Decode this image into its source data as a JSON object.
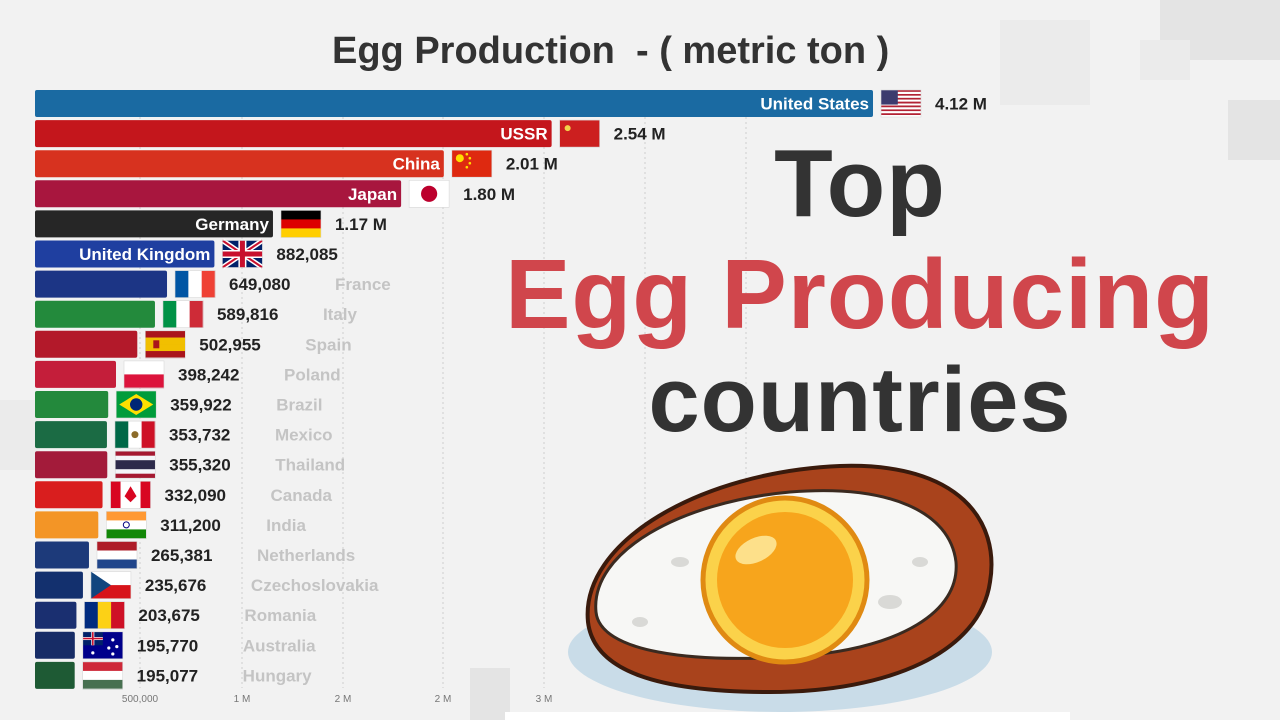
{
  "headline": {
    "line1": "Top",
    "line2": "Egg Producing",
    "line3": "countries"
  },
  "chart_data": {
    "type": "bar",
    "orientation": "horizontal",
    "title": "Egg Production  - ( metric ton )",
    "xlim": [
      0,
      4120000
    ],
    "grid": true,
    "x_ticks": [
      {
        "value": 500000,
        "label": "500,000"
      },
      {
        "value": 1000000,
        "label": "1 M"
      },
      {
        "value": 1500000,
        "label": "2 M"
      },
      {
        "value": 2000000,
        "label": "2 M"
      },
      {
        "value": 2500000,
        "label": "3 M"
      }
    ],
    "bars": [
      {
        "name": "United States",
        "value": 4120000,
        "value_label": "4.12 M",
        "color": "#1a6aa2",
        "flag": "us-flag-icon",
        "label_inside": true
      },
      {
        "name": "USSR",
        "value": 2540000,
        "value_label": "2.54 M",
        "color": "#c4161c",
        "flag": "ussr-flag-icon",
        "label_inside": true
      },
      {
        "name": "China",
        "value": 2010000,
        "value_label": "2.01 M",
        "color": "#d7321f",
        "flag": "china-flag-icon",
        "label_inside": true
      },
      {
        "name": "Japan",
        "value": 1800000,
        "value_label": "1.80 M",
        "color": "#a8163e",
        "flag": "japan-flag-icon",
        "label_inside": true
      },
      {
        "name": "Germany",
        "value": 1170000,
        "value_label": "1.17 M",
        "color": "#262626",
        "flag": "germany-flag-icon",
        "label_inside": true
      },
      {
        "name": "United Kingdom",
        "value": 882085,
        "value_label": "882,085",
        "color": "#1f3fa0",
        "flag": "uk-flag-icon",
        "label_inside": true
      },
      {
        "name": "France",
        "value": 649080,
        "value_label": "649,080",
        "color": "#1c3585",
        "flag": "france-flag-icon",
        "label_inside": false
      },
      {
        "name": "Italy",
        "value": 589816,
        "value_label": "589,816",
        "color": "#238a3c",
        "flag": "italy-flag-icon",
        "label_inside": false
      },
      {
        "name": "Spain",
        "value": 502955,
        "value_label": "502,955",
        "color": "#b3192a",
        "flag": "spain-flag-icon",
        "label_inside": false
      },
      {
        "name": "Poland",
        "value": 398242,
        "value_label": "398,242",
        "color": "#c41e3a",
        "flag": "poland-flag-icon",
        "label_inside": false
      },
      {
        "name": "Brazil",
        "value": 359922,
        "value_label": "359,922",
        "color": "#23893c",
        "flag": "brazil-flag-icon",
        "label_inside": false
      },
      {
        "name": "Mexico",
        "value": 353732,
        "value_label": "353,732",
        "color": "#1b6b44",
        "flag": "mexico-flag-icon",
        "label_inside": false
      },
      {
        "name": "Thailand",
        "value": 355320,
        "value_label": "355,320",
        "color": "#a31b3a",
        "flag": "thailand-flag-icon",
        "label_inside": false
      },
      {
        "name": "Canada",
        "value": 332090,
        "value_label": "332,090",
        "color": "#d91e1e",
        "flag": "canada-flag-icon",
        "label_inside": false
      },
      {
        "name": "India",
        "value": 311200,
        "value_label": "311,200",
        "color": "#f39526",
        "flag": "india-flag-icon",
        "label_inside": false
      },
      {
        "name": "Netherlands",
        "value": 265381,
        "value_label": "265,381",
        "color": "#1d3a7a",
        "flag": "netherlands-flag-icon",
        "label_inside": false
      },
      {
        "name": "Czechoslovakia",
        "value": 235676,
        "value_label": "235,676",
        "color": "#13306e",
        "flag": "czechoslovakia-flag-icon",
        "label_inside": false
      },
      {
        "name": "Romania",
        "value": 203675,
        "value_label": "203,675",
        "color": "#1a2f70",
        "flag": "romania-flag-icon",
        "label_inside": false
      },
      {
        "name": "Australia",
        "value": 195770,
        "value_label": "195,770",
        "color": "#172c66",
        "flag": "australia-flag-icon",
        "label_inside": false
      },
      {
        "name": "Hungary",
        "value": 195077,
        "value_label": "195,077",
        "color": "#1e5a34",
        "flag": "hungary-flag-icon",
        "label_inside": false
      }
    ]
  },
  "illustration": {
    "icon": "fried-egg-icon",
    "colors": {
      "plate": "#c9dce8",
      "pan": "#a9431c",
      "white": "#f7f7f5",
      "yolk": "#f7a51c"
    }
  }
}
